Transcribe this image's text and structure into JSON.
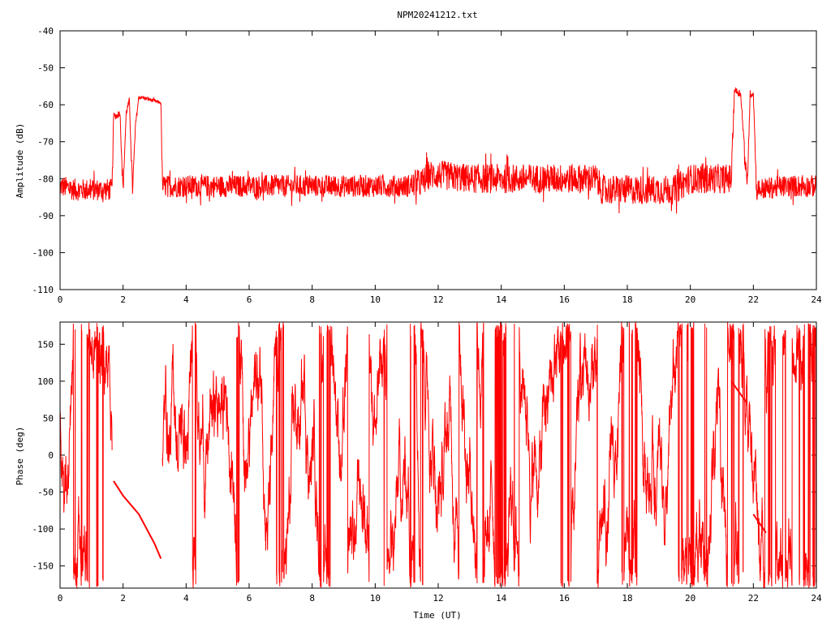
{
  "chart_data": [
    {
      "type": "line",
      "title": "NPM20241212.txt",
      "xlabel": "",
      "ylabel": "Amplitude (dB)",
      "xlim": [
        0,
        24
      ],
      "ylim": [
        -110,
        -40
      ],
      "xticks": [
        "0",
        "2",
        "4",
        "6",
        "8",
        "10",
        "12",
        "14",
        "16",
        "18",
        "20",
        "22",
        "24"
      ],
      "yticks": [
        "-40",
        "-50",
        "-60",
        "-70",
        "-80",
        "-90",
        "-100",
        "-110"
      ],
      "grid": false,
      "color": "#ff0000",
      "series": [
        {
          "x": [
            0,
            0.5,
            1.0,
            1.5,
            1.65,
            1.7,
            1.8,
            1.9,
            2.0,
            2.1,
            2.2,
            2.3,
            2.4,
            2.5,
            2.6,
            2.8,
            3.0,
            3.2,
            3.25,
            3.5,
            4,
            5,
            6,
            7,
            8,
            9,
            10,
            11,
            11.5,
            11.7,
            12,
            13,
            14,
            15,
            16,
            17,
            17.2,
            18,
            19,
            19.5,
            20,
            21,
            21.3,
            21.4,
            21.6,
            21.8,
            21.9,
            22.0,
            22.1,
            23,
            24
          ],
          "y": [
            -82,
            -83,
            -83,
            -83,
            -83,
            -63,
            -63,
            -62,
            -83,
            -62,
            -59,
            -83,
            -65,
            -58,
            -58,
            -58.5,
            -59,
            -59.5,
            -82,
            -82,
            -82,
            -82,
            -82,
            -82,
            -82,
            -82,
            -82,
            -82,
            -81,
            -79,
            -79,
            -80,
            -80,
            -80,
            -80,
            -80,
            -83,
            -83,
            -83,
            -83,
            -80,
            -80,
            -80,
            -56,
            -57,
            -83,
            -57,
            -57,
            -83,
            -82,
            -82
          ],
          "noise_band": [
            3,
            3,
            3,
            3,
            3,
            1,
            1,
            1,
            2,
            1,
            1,
            2,
            1,
            0.5,
            0.5,
            0.5,
            0.5,
            0.5,
            3,
            3,
            3,
            3,
            3,
            3,
            3,
            3,
            3,
            3,
            4,
            4,
            4,
            4,
            4,
            4,
            4,
            4,
            4,
            4,
            4,
            4,
            4,
            4,
            4,
            1,
            1,
            3,
            1,
            1,
            3,
            3,
            3
          ]
        }
      ]
    },
    {
      "type": "line",
      "title": "",
      "xlabel": "Time (UT)",
      "ylabel": "Phase (deg)",
      "xlim": [
        0,
        24
      ],
      "ylim": [
        -180,
        180
      ],
      "xticks": [
        "0",
        "2",
        "4",
        "6",
        "8",
        "10",
        "12",
        "14",
        "16",
        "18",
        "20",
        "22",
        "24"
      ],
      "yticks": [
        "150",
        "100",
        "50",
        "0",
        "-50",
        "-100",
        "-150"
      ],
      "grid": false,
      "color": "#ff0000",
      "series": [
        {
          "segments": [
            {
              "x": [
                1.7,
                2.0,
                2.5,
                3.0,
                3.2
              ],
              "y": [
                -35,
                -55,
                -80,
                -120,
                -140
              ]
            },
            {
              "x": [
                21.3,
                21.8
              ],
              "y": [
                100,
                70
              ]
            },
            {
              "x": [
                22.0,
                22.4
              ],
              "y": [
                -80,
                -105
              ]
            }
          ],
          "noisy_ranges": [
            [
              0,
              1.65
            ],
            [
              3.25,
              24
            ]
          ]
        }
      ]
    }
  ]
}
